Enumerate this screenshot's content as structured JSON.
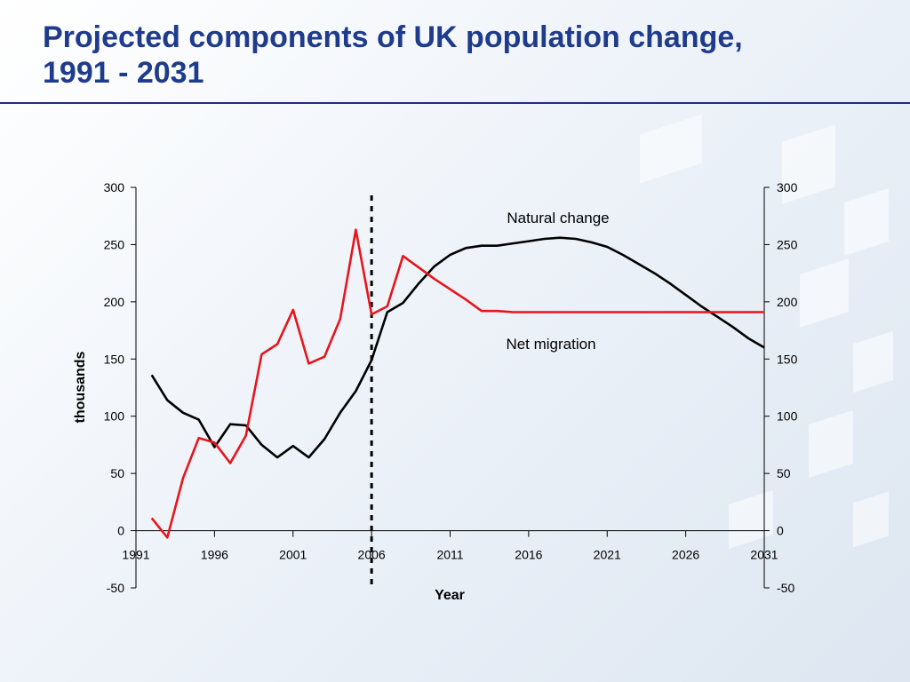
{
  "title": {
    "line1": "Projected components of UK population change,",
    "line2": "1991 - 2031"
  },
  "chart_data": {
    "type": "line",
    "xlabel": "Year",
    "ylabel": "thousands",
    "xlim": [
      1991,
      2031
    ],
    "ylim": [
      -50,
      300
    ],
    "x_ticks": [
      "1991",
      "1996",
      "2001",
      "2006",
      "2011",
      "2016",
      "2021",
      "2026",
      "2031"
    ],
    "y_ticks": [
      "300",
      "250",
      "200",
      "150",
      "100",
      "50",
      "0",
      "-50"
    ],
    "projection_divider_x": 2006,
    "series": [
      {
        "name": "Natural change",
        "color": "#000000",
        "points": [
          [
            1992,
            136
          ],
          [
            1993,
            114
          ],
          [
            1994,
            103
          ],
          [
            1995,
            97
          ],
          [
            1996,
            73
          ],
          [
            1997,
            93
          ],
          [
            1998,
            92
          ],
          [
            1999,
            75
          ],
          [
            2000,
            64
          ],
          [
            2001,
            74
          ],
          [
            2002,
            64
          ],
          [
            2003,
            80
          ],
          [
            2004,
            103
          ],
          [
            2005,
            122
          ],
          [
            2006,
            149
          ],
          [
            2007,
            191
          ],
          [
            2008,
            199
          ],
          [
            2009,
            216
          ],
          [
            2010,
            231
          ],
          [
            2011,
            241
          ],
          [
            2012,
            247
          ],
          [
            2013,
            249
          ],
          [
            2014,
            249
          ],
          [
            2015,
            251
          ],
          [
            2016,
            253
          ],
          [
            2017,
            255
          ],
          [
            2018,
            256
          ],
          [
            2019,
            255
          ],
          [
            2020,
            252
          ],
          [
            2021,
            248
          ],
          [
            2022,
            241
          ],
          [
            2023,
            233
          ],
          [
            2024,
            225
          ],
          [
            2025,
            216
          ],
          [
            2026,
            206
          ],
          [
            2027,
            196
          ],
          [
            2028,
            187
          ],
          [
            2029,
            178
          ],
          [
            2030,
            168
          ],
          [
            2031,
            160
          ]
        ]
      },
      {
        "name": "Net migration",
        "color": "#e8141b",
        "points": [
          [
            1992,
            11
          ],
          [
            1993,
            -6
          ],
          [
            1994,
            46
          ],
          [
            1995,
            81
          ],
          [
            1996,
            77
          ],
          [
            1997,
            59
          ],
          [
            1998,
            83
          ],
          [
            1999,
            154
          ],
          [
            2000,
            163
          ],
          [
            2001,
            193
          ],
          [
            2002,
            146
          ],
          [
            2003,
            152
          ],
          [
            2004,
            185
          ],
          [
            2005,
            263
          ],
          [
            2006,
            189
          ],
          [
            2007,
            196
          ],
          [
            2008,
            240
          ],
          [
            2009,
            230
          ],
          [
            2010,
            220
          ],
          [
            2011,
            211
          ],
          [
            2012,
            202
          ],
          [
            2013,
            192
          ],
          [
            2014,
            192
          ],
          [
            2015,
            191
          ],
          [
            2016,
            191
          ],
          [
            2017,
            191
          ],
          [
            2018,
            191
          ],
          [
            2019,
            191
          ],
          [
            2020,
            191
          ],
          [
            2021,
            191
          ],
          [
            2022,
            191
          ],
          [
            2023,
            191
          ],
          [
            2024,
            191
          ],
          [
            2025,
            191
          ],
          [
            2026,
            191
          ],
          [
            2027,
            191
          ],
          [
            2028,
            191
          ],
          [
            2029,
            191
          ],
          [
            2030,
            191
          ],
          [
            2031,
            191
          ]
        ]
      }
    ]
  }
}
